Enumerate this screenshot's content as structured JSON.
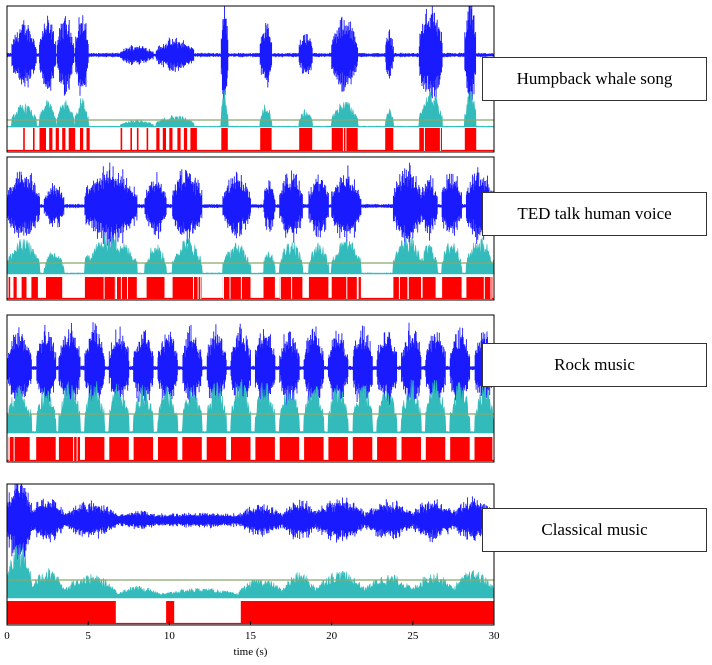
{
  "chart_data": {
    "type": "line",
    "xlabel": "time (s)",
    "xlim": [
      0,
      30
    ],
    "xticks": [
      0,
      5,
      10,
      15,
      20,
      25,
      30
    ],
    "panels": [
      {
        "label": "Humpback whale song",
        "series": [
          {
            "role": "waveform",
            "color": "#1a1aff"
          },
          {
            "role": "energy",
            "color": "#33bbbb"
          },
          {
            "role": "threshold",
            "color": "#8aa86a"
          },
          {
            "role": "detection",
            "color": "#ff0000"
          }
        ],
        "events": [
          [
            0.3,
            1.8,
            0.8
          ],
          [
            2.0,
            3.0,
            0.9
          ],
          [
            3.1,
            4.1,
            0.95
          ],
          [
            4.2,
            5.0,
            1.0
          ],
          [
            7.0,
            9.0,
            0.25
          ],
          [
            9.2,
            11.5,
            0.4
          ],
          [
            13.2,
            13.6,
            1.3
          ],
          [
            15.6,
            16.3,
            0.8
          ],
          [
            18.0,
            18.8,
            0.6
          ],
          [
            20.0,
            21.6,
            0.9
          ],
          [
            23.3,
            23.8,
            0.6
          ],
          [
            25.4,
            26.8,
            1.2
          ],
          [
            28.2,
            28.9,
            1.3
          ]
        ],
        "detections": [
          [
            1.0,
            1.1
          ],
          [
            1.6,
            1.7
          ],
          [
            2.0,
            2.4
          ],
          [
            2.6,
            2.8
          ],
          [
            3.0,
            3.2
          ],
          [
            3.4,
            3.6
          ],
          [
            3.8,
            4.2
          ],
          [
            4.5,
            4.7
          ],
          [
            4.9,
            5.1
          ],
          [
            7.0,
            7.1
          ],
          [
            7.6,
            7.7
          ],
          [
            8.0,
            8.1
          ],
          [
            8.6,
            8.7
          ],
          [
            9.2,
            9.4
          ],
          [
            9.6,
            9.8
          ],
          [
            10.0,
            10.2
          ],
          [
            10.5,
            10.7
          ],
          [
            10.9,
            11.1
          ],
          [
            11.3,
            11.7
          ],
          [
            13.2,
            13.6
          ],
          [
            15.6,
            16.3
          ],
          [
            18.0,
            18.8
          ],
          [
            20.0,
            21.6
          ],
          [
            23.3,
            23.8
          ],
          [
            25.4,
            26.8
          ],
          [
            28.2,
            28.9
          ]
        ]
      },
      {
        "label": "TED talk human voice",
        "series": [
          {
            "role": "waveform",
            "color": "#1a1aff"
          },
          {
            "role": "energy",
            "color": "#33bbbb"
          },
          {
            "role": "threshold",
            "color": "#8aa86a"
          },
          {
            "role": "detection",
            "color": "#ff0000"
          }
        ],
        "events": [
          [
            0.0,
            2.0,
            0.9
          ],
          [
            2.3,
            3.5,
            0.6
          ],
          [
            4.8,
            8.0,
            1.0
          ],
          [
            8.5,
            9.8,
            0.8
          ],
          [
            10.2,
            12.0,
            0.95
          ],
          [
            13.3,
            15.0,
            0.8
          ],
          [
            15.8,
            16.5,
            0.7
          ],
          [
            16.8,
            18.2,
            0.9
          ],
          [
            18.6,
            19.8,
            0.85
          ],
          [
            20.0,
            21.8,
            0.9
          ],
          [
            23.8,
            25.5,
            1.0
          ],
          [
            25.5,
            26.5,
            0.8
          ],
          [
            26.8,
            28.0,
            0.9
          ],
          [
            28.3,
            30.0,
            0.95
          ]
        ],
        "detections": [
          [
            0.1,
            0.2
          ],
          [
            0.4,
            0.6
          ],
          [
            0.9,
            1.2
          ],
          [
            1.5,
            1.9
          ],
          [
            2.4,
            3.4
          ],
          [
            4.8,
            8.0
          ],
          [
            8.6,
            9.7
          ],
          [
            10.2,
            12.0
          ],
          [
            13.3,
            15.0
          ],
          [
            15.8,
            16.5
          ],
          [
            16.8,
            18.2
          ],
          [
            18.6,
            19.8
          ],
          [
            20.0,
            21.8
          ],
          [
            23.8,
            25.5
          ],
          [
            25.6,
            26.4
          ],
          [
            26.8,
            28.0
          ],
          [
            28.3,
            29.9
          ]
        ]
      },
      {
        "label": "Rock music",
        "series": [
          {
            "role": "waveform",
            "color": "#1a1aff"
          },
          {
            "role": "energy",
            "color": "#33bbbb"
          },
          {
            "role": "threshold",
            "color": "#8aa86a"
          },
          {
            "role": "detection",
            "color": "#ff0000"
          }
        ],
        "events": [
          [
            0.0,
            1.5,
            0.9
          ],
          [
            1.8,
            3.0,
            0.9
          ],
          [
            3.2,
            4.5,
            1.0
          ],
          [
            4.8,
            6.0,
            1.0
          ],
          [
            6.3,
            7.5,
            0.95
          ],
          [
            7.8,
            9.0,
            0.9
          ],
          [
            9.3,
            10.5,
            0.9
          ],
          [
            10.8,
            12.0,
            0.9
          ],
          [
            12.3,
            13.5,
            0.95
          ],
          [
            13.8,
            15.0,
            1.0
          ],
          [
            15.3,
            16.5,
            1.0
          ],
          [
            16.8,
            18.0,
            0.9
          ],
          [
            18.3,
            19.5,
            0.95
          ],
          [
            19.8,
            21.0,
            0.9
          ],
          [
            21.3,
            22.5,
            1.0
          ],
          [
            22.8,
            24.0,
            0.9
          ],
          [
            24.3,
            25.5,
            1.0
          ],
          [
            25.8,
            27.0,
            1.0
          ],
          [
            27.3,
            28.5,
            0.95
          ],
          [
            28.8,
            30.0,
            0.9
          ]
        ],
        "detections": [
          [
            0.1,
            1.4
          ],
          [
            1.8,
            3.0
          ],
          [
            3.2,
            4.5
          ],
          [
            4.8,
            6.0
          ],
          [
            6.3,
            7.5
          ],
          [
            7.8,
            9.0
          ],
          [
            9.3,
            10.5
          ],
          [
            10.8,
            12.0
          ],
          [
            12.3,
            13.5
          ],
          [
            13.8,
            15.0
          ],
          [
            15.3,
            16.5
          ],
          [
            16.8,
            18.0
          ],
          [
            18.3,
            19.5
          ],
          [
            19.8,
            21.0
          ],
          [
            21.3,
            22.5
          ],
          [
            22.8,
            24.0
          ],
          [
            24.3,
            25.5
          ],
          [
            25.8,
            27.0
          ],
          [
            27.3,
            28.5
          ],
          [
            28.8,
            29.9
          ]
        ]
      },
      {
        "label": "Classical music",
        "series": [
          {
            "role": "waveform",
            "color": "#1a1aff"
          },
          {
            "role": "energy",
            "color": "#33bbbb"
          },
          {
            "role": "threshold",
            "color": "#8aa86a"
          },
          {
            "role": "detection",
            "color": "#ff0000"
          }
        ],
        "events": [
          [
            0.0,
            1.5,
            1.4
          ],
          [
            1.5,
            3.5,
            0.75
          ],
          [
            3.5,
            6.7,
            0.6
          ],
          [
            6.7,
            9.5,
            0.3
          ],
          [
            9.5,
            14.3,
            0.25
          ],
          [
            14.3,
            17.0,
            0.5
          ],
          [
            17.0,
            19.0,
            0.65
          ],
          [
            19.0,
            22.0,
            0.7
          ],
          [
            22.0,
            25.0,
            0.6
          ],
          [
            25.0,
            27.5,
            0.65
          ],
          [
            27.5,
            30.0,
            0.7
          ]
        ],
        "detections": [
          [
            0.0,
            6.7
          ],
          [
            9.8,
            10.3
          ],
          [
            14.4,
            30.0
          ]
        ]
      }
    ]
  }
}
